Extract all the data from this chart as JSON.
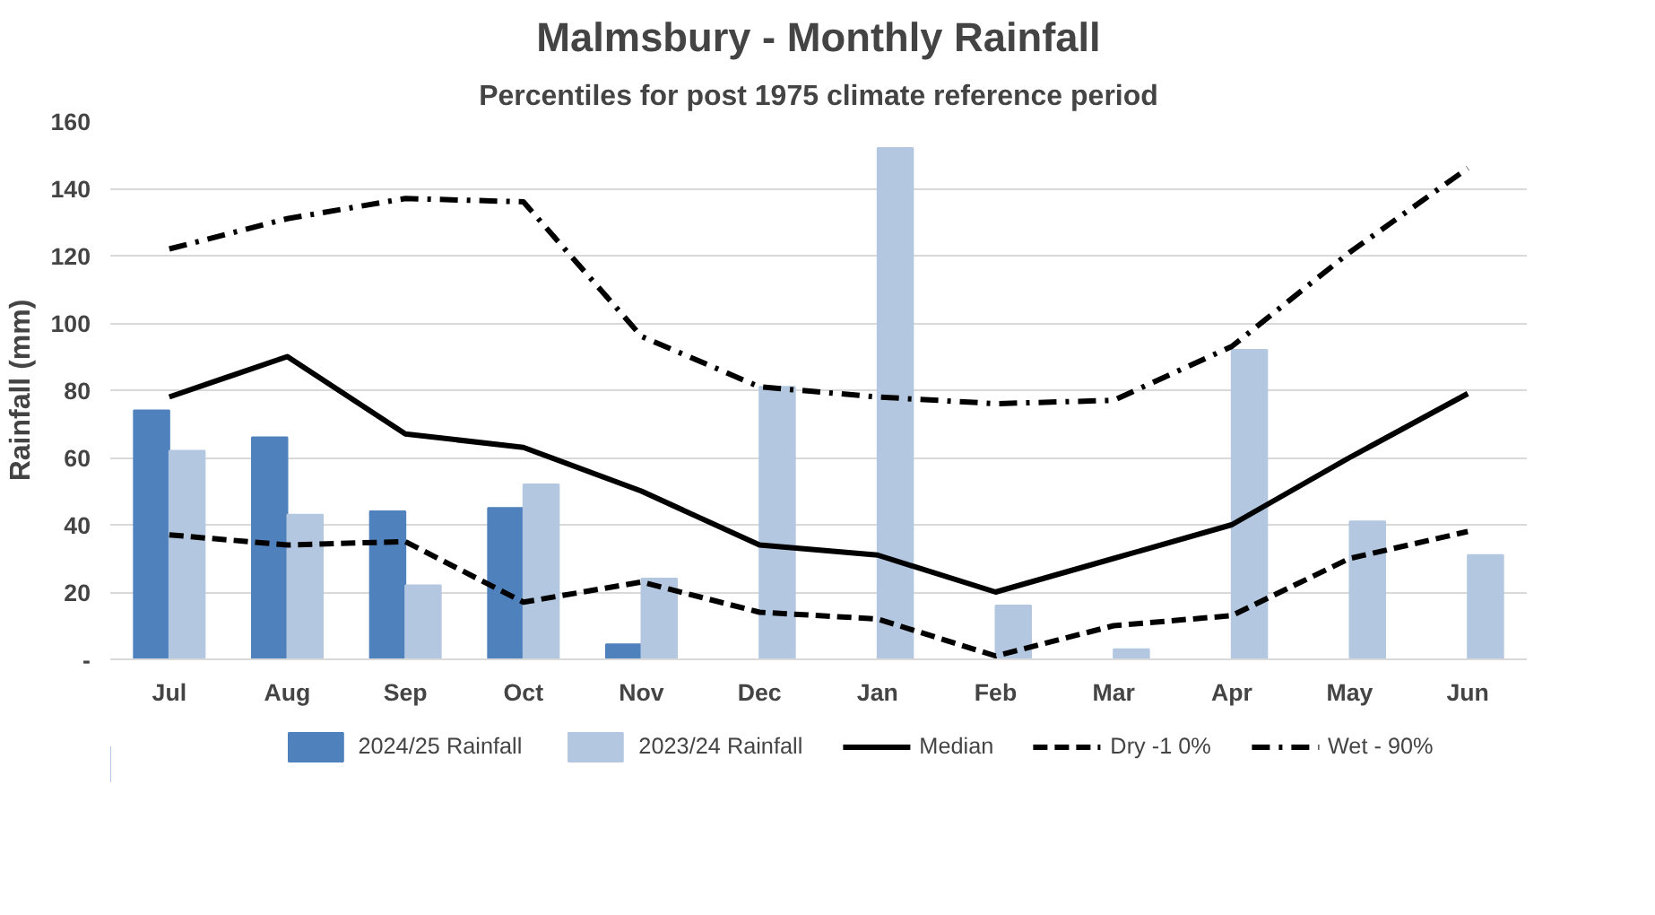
{
  "chart_data": {
    "type": "bar",
    "title": "Malmsbury - Monthly Rainfall",
    "subtitle": "Percentiles for post 1975 climate reference period",
    "ylabel": "Rainfall (mm)",
    "categories": [
      "Jul",
      "Aug",
      "Sep",
      "Oct",
      "Nov",
      "Dec",
      "Jan",
      "Feb",
      "Mar",
      "Apr",
      "May",
      "Jun"
    ],
    "ylim": [
      0,
      160
    ],
    "yticks": [
      {
        "value": 0,
        "label": "-"
      },
      20,
      40,
      60,
      80,
      100,
      120,
      140,
      160
    ],
    "grid": "y",
    "legend": "bottom",
    "series": [
      {
        "name": "2024/25 Rainfall",
        "color": "#4f81bd",
        "values": [
          74,
          66,
          44,
          45,
          4.5,
          null,
          null,
          null,
          null,
          null,
          null,
          null
        ]
      },
      {
        "name": "2023/24 Rainfall",
        "color": "#b4c7e0",
        "values": [
          62,
          43,
          22,
          52,
          24,
          81,
          152,
          16,
          3,
          92,
          41,
          31
        ]
      },
      {
        "name": "Median",
        "type": "line",
        "color": "#000000",
        "line_style": "solid",
        "values": [
          78,
          90,
          67,
          63,
          50,
          34,
          31,
          20,
          30,
          40,
          60,
          79
        ]
      },
      {
        "name": "Dry -1 0%",
        "type": "line",
        "color": "#000000",
        "line_style": "dashed",
        "values": [
          37,
          34,
          35,
          17,
          23,
          14,
          12,
          1,
          10,
          13,
          30,
          38
        ]
      },
      {
        "name": "Wet - 90%",
        "type": "line",
        "color": "#000000",
        "line_style": "dashdot",
        "values": [
          122,
          131,
          137,
          136,
          96,
          81,
          78,
          76,
          77,
          93,
          121,
          146
        ]
      }
    ]
  }
}
